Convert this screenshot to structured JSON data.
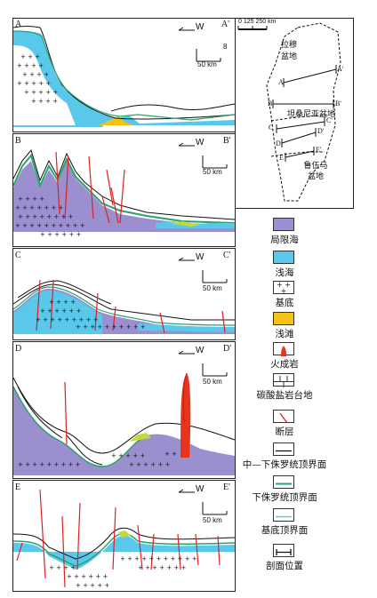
{
  "profiles": [
    {
      "start": "A",
      "end": "A'",
      "direction": "W",
      "scale": "50 km"
    },
    {
      "start": "B",
      "end": "B'",
      "direction": "W",
      "scale": "50 km"
    },
    {
      "start": "C",
      "end": "C'",
      "direction": "W",
      "scale": "50 km"
    },
    {
      "start": "D",
      "end": "D'",
      "direction": "W",
      "scale": "50 km"
    },
    {
      "start": "E",
      "end": "E'",
      "direction": "W",
      "scale": "50 km"
    }
  ],
  "vertical_scale": "8",
  "map": {
    "scale_label": "0  125  250 km",
    "basins": [
      {
        "name_line1": "拉穆",
        "name_line2": "盆地"
      },
      {
        "name_line1": "坦桑尼亚盆地",
        "name_line2": ""
      },
      {
        "name_line1": "鲁伍马",
        "name_line2": "盆地"
      }
    ],
    "line_labels": {
      "A": "A",
      "A2": "A'",
      "B": "B",
      "B2": "B'",
      "C": "C",
      "C2": "C'",
      "D": "D",
      "D2": "D'",
      "E": "E",
      "E2": "E'"
    }
  },
  "legend": [
    {
      "label": "局限海",
      "color": "#9b8fd0"
    },
    {
      "label": "浅海",
      "color": "#5ac8ea"
    },
    {
      "label": "基底"
    },
    {
      "label": "浅滩",
      "color": "#f5c218"
    },
    {
      "label": "火成岩",
      "color": "#e8341c"
    },
    {
      "label": "碳酸盐岩台地"
    },
    {
      "label": "断层",
      "color": "#e02020"
    },
    {
      "label": "中—下侏罗统顶界面",
      "color": "#111111"
    },
    {
      "label": "下侏罗统顶界面",
      "color": "#27a46c"
    },
    {
      "label": "基底顶界面",
      "color": "#5ac8ea"
    },
    {
      "label": "剖面位置"
    }
  ]
}
